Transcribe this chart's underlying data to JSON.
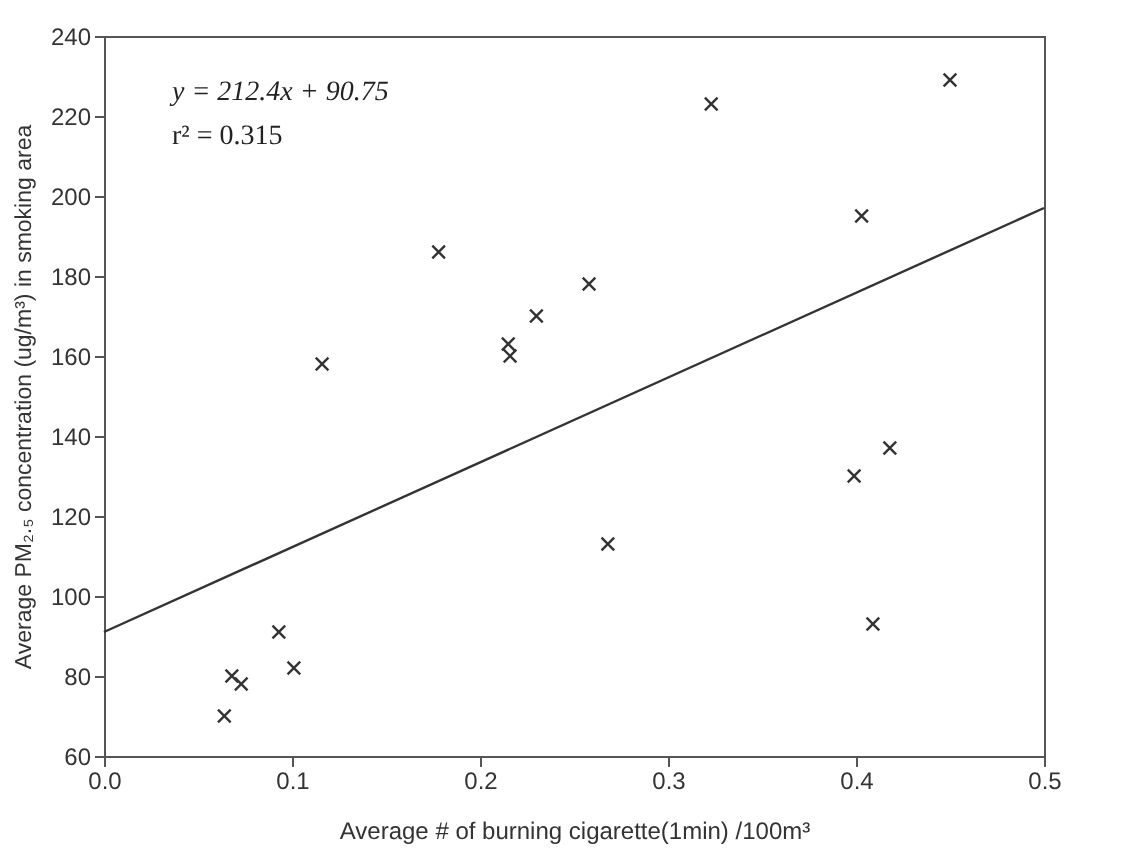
{
  "chart_data": {
    "type": "scatter",
    "xlabel": "Average # of burning cigarette(1min) /100m³",
    "ylabel": "Average PM₂.₅ concentration (ug/m³) in smoking area",
    "xlim": [
      0,
      0.5
    ],
    "xticks": [
      {
        "value": 0,
        "label": "0.0"
      },
      0.1,
      0.2,
      0.3,
      0.4,
      0.5
    ],
    "ylim": [
      60,
      240
    ],
    "yticks": [
      60,
      80,
      100,
      120,
      140,
      160,
      180,
      200,
      220,
      240
    ],
    "grid": false,
    "annotations": [
      "y = 212.4x + 90.75",
      "r² = 0.315"
    ],
    "series": [
      {
        "color": "#333333",
        "marker": "cross",
        "x": [
          0.064,
          0.068,
          0.073,
          0.093,
          0.101,
          0.116,
          0.178,
          0.215,
          0.216,
          0.23,
          0.258,
          0.268,
          0.323,
          0.399,
          0.403,
          0.409,
          0.418,
          0.45
        ],
        "values": [
          70,
          80,
          78,
          91,
          82,
          158,
          186,
          163,
          160,
          170,
          178,
          113,
          223,
          130,
          195,
          93,
          137,
          229
        ]
      },
      {
        "type": "line",
        "color": "#333333",
        "x": [
          0,
          0.5
        ],
        "values": [
          91,
          197
        ],
        "marker": "none"
      }
    ]
  }
}
